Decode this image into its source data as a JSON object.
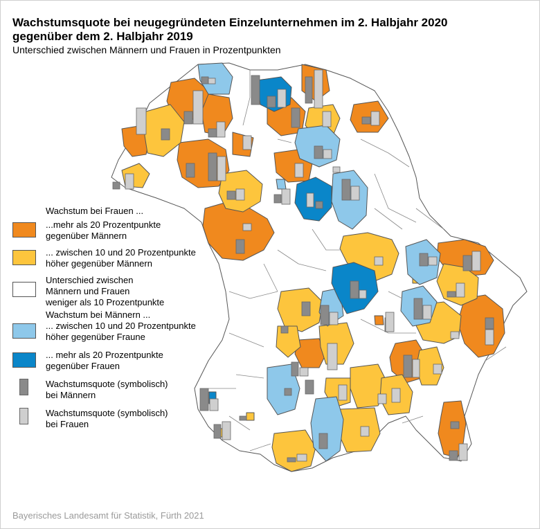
{
  "title_line1": "Wachstumsquote bei neugegründeten Einzelunternehmen im 2. Halbjahr 2020",
  "title_line2": "gegenüber dem 2. Halbjahr 2019",
  "subtitle": "Unterschied zwischen Männern und Frauen in Prozentpunkten",
  "source": "Bayerisches Landesamt für Statistik, Fürth 2021",
  "colors": {
    "orange": "#f0891e",
    "yellow": "#fdc53d",
    "white": "#ffffff",
    "lightblue": "#8ec8ea",
    "blue": "#0a86c9",
    "bar_men": "#8a8a8a",
    "bar_women": "#cfcfcf"
  },
  "legend": {
    "women_heading": "Wachstum bei Frauen ...",
    "women_20_line1": "...mehr als 20 Prozentpunkte",
    "women_20_line2": "gegenüber Männern",
    "women_10_line1": "... zwischen 10 und 20 Prozentpunkte",
    "women_10_line2": "höher gegenüber Männern",
    "neutral_line1": "Unterschied zwischen",
    "neutral_line2": "Männern und Frauen",
    "neutral_line3": "weniger als 10 Prozentpunkte",
    "men_heading": "Wachstum bei Männern ...",
    "men_10_line1": "... zwischen 10 und 20 Prozentpunkte",
    "men_10_line2": "höher gegenüber Fraune",
    "men_20_line1": "... mehr als 20 Prozentpunkte",
    "men_20_line2": "gegenüber Frauen",
    "bar_men_line1": "Wachstumsquote (symbolisch)",
    "bar_men_line2": "bei Männern",
    "bar_women_line1": "Wachstumsquote (symbolisch)",
    "bar_women_line2": "bei Frauen"
  }
}
